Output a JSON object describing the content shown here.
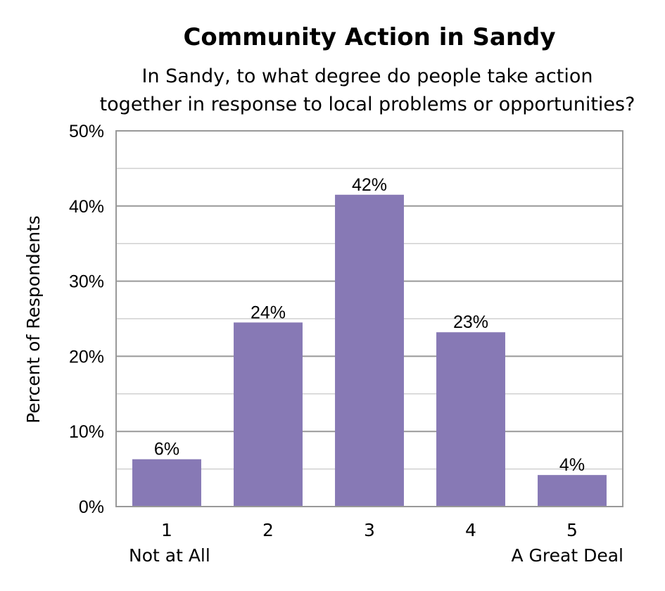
{
  "chart_data": {
    "type": "bar",
    "title": "Community Action in Sandy",
    "subtitle_lines": [
      "In Sandy, to what degree do people take action",
      "together in response to local problems or opportunities?"
    ],
    "ylabel": "Percent of Respondents",
    "xlabel": "",
    "categories": [
      "1",
      "2",
      "3",
      "4",
      "5"
    ],
    "category_sublabels": [
      "Not at All",
      "",
      "",
      "",
      "A Great Deal"
    ],
    "values": [
      6.3,
      24.5,
      41.5,
      23.2,
      4.2
    ],
    "data_labels": [
      "6%",
      "24%",
      "42%",
      "23%",
      "4%"
    ],
    "ylim": [
      0,
      50
    ],
    "yticks": [
      0,
      10,
      20,
      30,
      40,
      50
    ],
    "ytick_labels": [
      "0%",
      "10%",
      "20%",
      "30%",
      "40%",
      "50%"
    ],
    "grid": true,
    "legend": "none",
    "colors": {
      "bar": "#8779b5",
      "grid_major": "#999999",
      "grid_minor": "#d0d0d0",
      "frame": "#999999"
    }
  }
}
